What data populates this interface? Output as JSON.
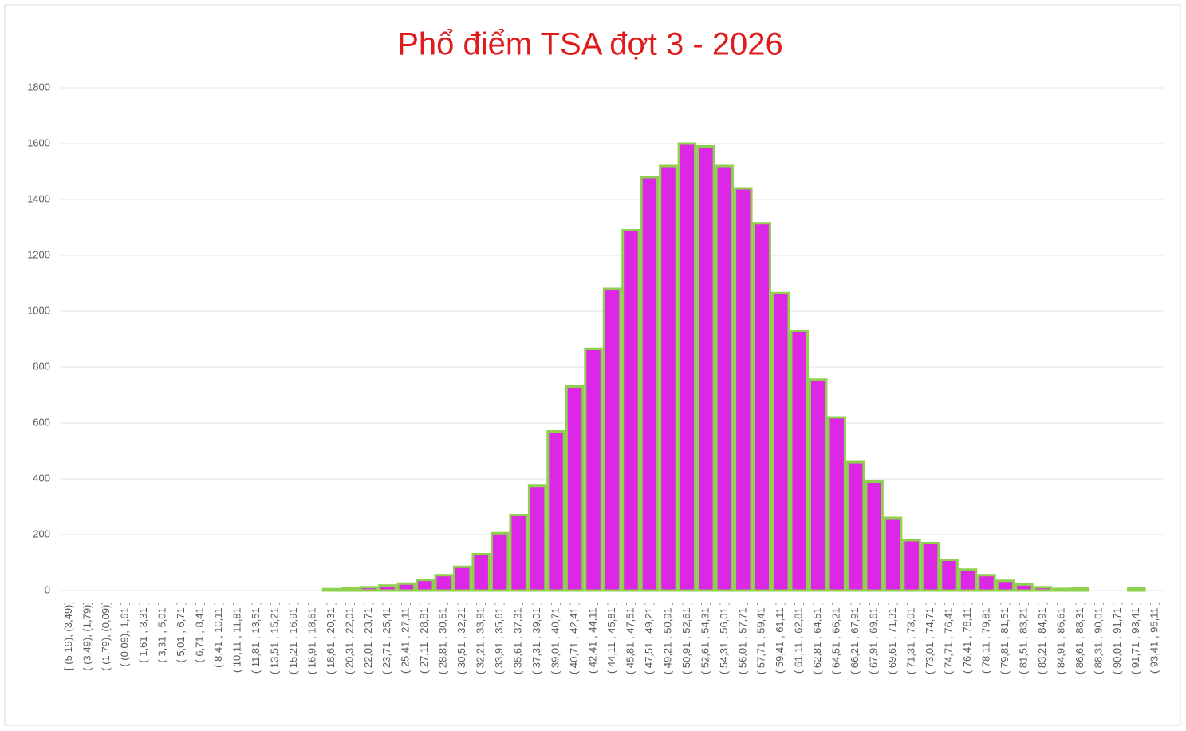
{
  "chart_data": {
    "type": "bar",
    "title": "Phổ điểm TSA đợt 3 - 2026",
    "categories": [
      "[ (5,19), (3,49)]",
      "( (3,49), (1,79)]",
      "( (1,79), (0,09)]",
      "( (0,09), 1,61 ]",
      "( 1,61 , 3,31 ]",
      "( 3,31 , 5,01 ]",
      "( 5,01 , 6,71 ]",
      "( 6,71 , 8,41 ]",
      "( 8,41 , 10,11 ]",
      "( 10,11 , 11,81 ]",
      "( 11,81 , 13,51 ]",
      "( 13,51 , 15,21 ]",
      "( 15,21 , 16,91 ]",
      "( 16,91 , 18,61 ]",
      "( 18,61 , 20,31 ]",
      "( 20,31 , 22,01 ]",
      "( 22,01 , 23,71 ]",
      "( 23,71 , 25,41 ]",
      "( 25,41 , 27,11 ]",
      "( 27,11 , 28,81 ]",
      "( 28,81 , 30,51 ]",
      "( 30,51 , 32,21 ]",
      "( 32,21 , 33,91 ]",
      "( 33,91 , 35,61 ]",
      "( 35,61 , 37,31 ]",
      "( 37,31 , 39,01 ]",
      "( 39,01 , 40,71 ]",
      "( 40,71 , 42,41 ]",
      "( 42,41 , 44,11 ]",
      "( 44,11 , 45,81 ]",
      "( 45,81 , 47,51 ]",
      "( 47,51 , 49,21 ]",
      "( 49,21 , 50,91 ]",
      "( 50,91 , 52,61 ]",
      "( 52,61 , 54,31 ]",
      "( 54,31 , 56,01 ]",
      "( 56,01 , 57,71 ]",
      "( 57,71 , 59,41 ]",
      "( 59,41 , 61,11 ]",
      "( 61,11 , 62,81 ]",
      "( 62,81 , 64,51 ]",
      "( 64,51 , 66,21 ]",
      "( 66,21 , 67,91 ]",
      "( 67,91 , 69,61 ]",
      "( 69,61 , 71,31 ]",
      "( 71,31 , 73,01 ]",
      "( 73,01 , 74,71 ]",
      "( 74,71 , 76,41 ]",
      "( 76,41 , 78,11 ]",
      "( 78,11 , 79,81 ]",
      "( 79,81 , 81,51 ]",
      "( 81,51 , 83,21 ]",
      "( 83,21 , 84,91 ]",
      "( 84,91 , 86,61 ]",
      "( 86,61 , 88,31 ]",
      "( 88,31 , 90,01 ]",
      "( 90,01 , 91,71 ]",
      "( 91,71 , 93,41 ]",
      "( 93,41 , 95,11 ]"
    ],
    "values": [
      0,
      0,
      0,
      0,
      0,
      0,
      0,
      0,
      0,
      0,
      0,
      0,
      0,
      0,
      5,
      8,
      12,
      18,
      25,
      38,
      55,
      85,
      130,
      205,
      270,
      375,
      570,
      730,
      865,
      1080,
      1290,
      1480,
      1520,
      1600,
      1590,
      1520,
      1440,
      1315,
      1065,
      930,
      755,
      620,
      460,
      390,
      260,
      180,
      170,
      110,
      75,
      55,
      35,
      22,
      12,
      6,
      8,
      0,
      0,
      8,
      0
    ],
    "color": "#dc28e6",
    "edge_color": "#8fd14f",
    "ylim": [
      0,
      1800
    ],
    "yticks": [
      0,
      200,
      400,
      600,
      800,
      1000,
      1200,
      1400,
      1600,
      1800
    ],
    "grid": true
  }
}
